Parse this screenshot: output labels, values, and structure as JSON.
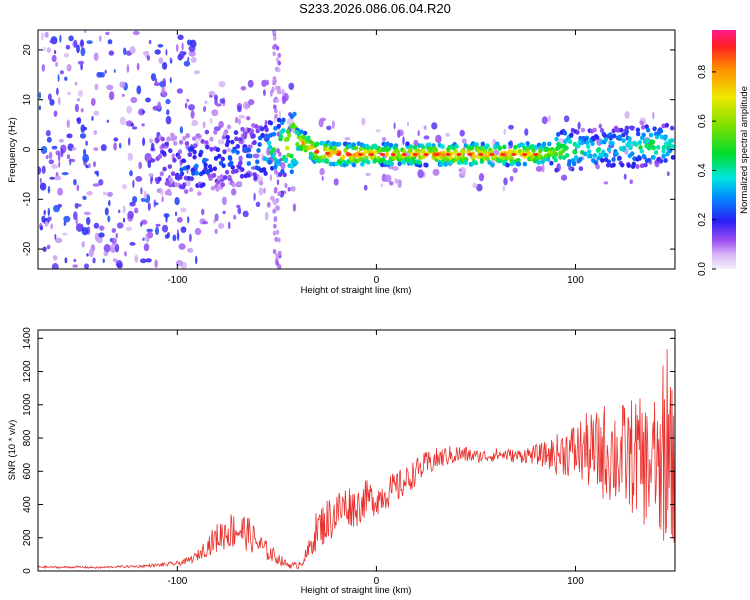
{
  "title": "S233.2026.086.06.04.R20",
  "chart_data": [
    {
      "type": "heatmap",
      "title": "S233.2026.086.06.04.R20",
      "xlabel": "Height of straight line (km)",
      "ylabel": "Frequency (Hz)",
      "xlim": [
        -170,
        150
      ],
      "ylim": [
        -24,
        24
      ],
      "xticks": [
        -100,
        0,
        100
      ],
      "yticks": [
        -20,
        -10,
        0,
        10,
        20
      ],
      "colorbar": {
        "label": "Normalized spectral amplitude",
        "range": [
          0,
          0.97
        ],
        "ticks": [
          0.0,
          0.2,
          0.4,
          0.6,
          0.8
        ]
      },
      "ridge": {
        "x": [
          -160,
          -130,
          -100,
          -90,
          -80,
          -70,
          -60,
          -50,
          -45,
          -40,
          -35,
          -30,
          -20,
          -10,
          0,
          10,
          20,
          30,
          40,
          50,
          60,
          70,
          80,
          90,
          100,
          110,
          120,
          130,
          140,
          148
        ],
        "freq": [
          -1,
          -2,
          -3,
          -3,
          -2,
          -1,
          -1,
          0,
          1,
          2,
          1,
          -0.5,
          -1,
          -1,
          -1,
          -1,
          -1,
          -1,
          -1,
          -1,
          -1,
          -1,
          -1,
          -0.5,
          0,
          0,
          0.5,
          0.5,
          1,
          1
        ],
        "amplitude": [
          0.15,
          0.2,
          0.2,
          0.3,
          0.25,
          0.25,
          0.3,
          0.5,
          0.7,
          0.85,
          0.8,
          0.85,
          0.9,
          0.85,
          0.8,
          0.75,
          0.8,
          0.85,
          0.8,
          0.85,
          0.8,
          0.85,
          0.75,
          0.6,
          0.5,
          0.4,
          0.4,
          0.45,
          0.5,
          0.4
        ]
      }
    },
    {
      "type": "line",
      "xlabel": "Height of straight line (km)",
      "ylabel": "SNR (10 * v/v)",
      "xlim": [
        -170,
        150
      ],
      "ylim": [
        0,
        1450
      ],
      "xticks": [
        -100,
        0,
        100
      ],
      "yticks": [
        0,
        200,
        400,
        600,
        800,
        1000,
        1200,
        1400
      ],
      "series": [
        {
          "name": "SNR",
          "color": "#e8302c",
          "x": [
            -170,
            -160,
            -150,
            -140,
            -130,
            -120,
            -110,
            -100,
            -95,
            -90,
            -85,
            -80,
            -75,
            -70,
            -65,
            -60,
            -55,
            -50,
            -45,
            -40,
            -35,
            -30,
            -25,
            -20,
            -15,
            -10,
            -5,
            0,
            5,
            10,
            15,
            20,
            25,
            30,
            35,
            40,
            45,
            50,
            55,
            60,
            65,
            70,
            75,
            80,
            85,
            90,
            95,
            100,
            105,
            110,
            115,
            120,
            125,
            130,
            135,
            140,
            145,
            150
          ],
          "values": [
            25,
            22,
            24,
            20,
            26,
            28,
            35,
            45,
            60,
            90,
            150,
            200,
            240,
            250,
            230,
            170,
            120,
            80,
            40,
            30,
            90,
            250,
            300,
            350,
            400,
            380,
            440,
            430,
            470,
            500,
            540,
            600,
            640,
            670,
            690,
            700,
            700,
            690,
            690,
            700,
            700,
            690,
            700,
            700,
            700,
            700,
            720,
            720,
            730,
            700,
            720,
            700,
            680,
            700,
            640,
            650,
            620,
            650
          ],
          "spread": [
            6,
            6,
            6,
            6,
            6,
            8,
            10,
            15,
            20,
            30,
            60,
            90,
            110,
            120,
            110,
            80,
            60,
            40,
            20,
            20,
            50,
            120,
            140,
            140,
            130,
            120,
            110,
            100,
            100,
            100,
            90,
            80,
            80,
            70,
            60,
            60,
            50,
            40,
            40,
            40,
            40,
            40,
            50,
            60,
            80,
            120,
            150,
            180,
            220,
            260,
            300,
            320,
            340,
            360,
            380,
            420,
            460,
            500
          ]
        }
      ]
    }
  ]
}
